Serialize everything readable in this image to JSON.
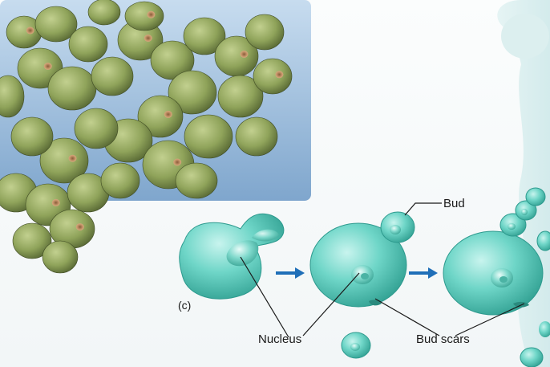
{
  "figure": {
    "panel_label": "(c)",
    "labels": {
      "bud": "Bud",
      "nucleus": "Nucleus",
      "bud_scars": "Bud scars"
    }
  },
  "colors": {
    "cell_fill": "#5ccfc0",
    "cell_edge": "#2d9a8e",
    "yeast_green": "#93a85e",
    "bud_scar": "#b8865a",
    "micrograph_bg": "#a9c9e6",
    "arrow": "#1f6fb8"
  }
}
